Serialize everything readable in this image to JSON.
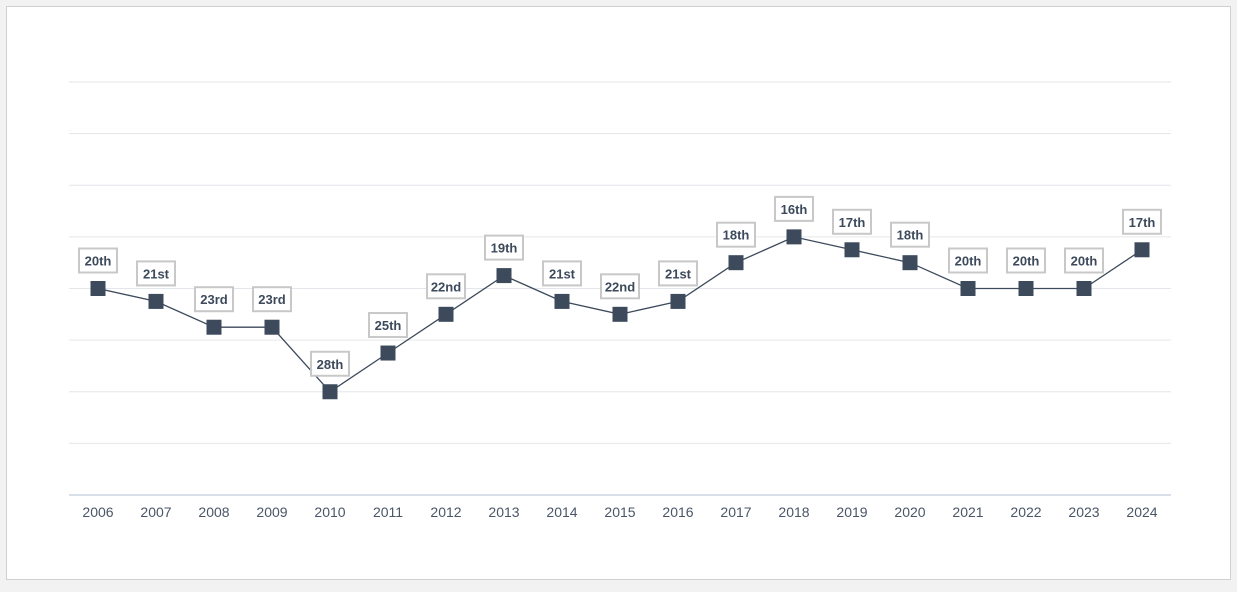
{
  "chart_data": {
    "type": "line",
    "x": [
      "2006",
      "2007",
      "2008",
      "2009",
      "2010",
      "2011",
      "2012",
      "2013",
      "2014",
      "2015",
      "2016",
      "2017",
      "2018",
      "2019",
      "2020",
      "2021",
      "2022",
      "2023",
      "2024"
    ],
    "series": [
      {
        "values": [
          20,
          21,
          23,
          23,
          28,
          25,
          22,
          19,
          21,
          22,
          21,
          18,
          16,
          17,
          18,
          20,
          20,
          20,
          17
        ],
        "labels": [
          "20th",
          "21st",
          "23rd",
          "23rd",
          "28th",
          "25th",
          "22nd",
          "19th",
          "21st",
          "22nd",
          "21st",
          "18th",
          "16th",
          "17th",
          "18th",
          "20th",
          "20th",
          "20th",
          "17th"
        ]
      }
    ],
    "y_axis": {
      "inverted": true,
      "ylim": [
        36,
        4
      ],
      "tick_labels_shown": false
    },
    "grid": true,
    "legend": "none",
    "colors": {
      "line": "#3d4a5c",
      "marker": "#3d4a5c",
      "grid": "#e3e6ea",
      "label_border": "#c8c8c8"
    }
  }
}
